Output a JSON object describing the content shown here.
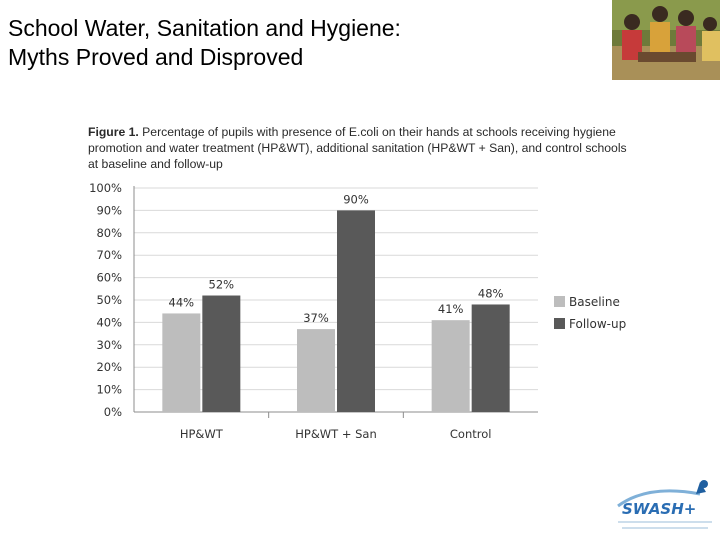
{
  "slide": {
    "title_line1": "School Water, Sanitation and Hygiene:",
    "title_line2": "Myths Proved and Disproved"
  },
  "figure": {
    "label": "Figure 1.",
    "caption": " Percentage of pupils with presence of E.coli on their hands at schools receiving hygiene promotion and water treatment (HP&WT), additional sanitation (HP&WT + San), and control schools at baseline and follow-up"
  },
  "logo": {
    "text": "SWASH+"
  },
  "colors": {
    "baseline": "#bdbdbd",
    "followup": "#595959",
    "axis": "#8c8c8c",
    "grid": "#d9d9d9"
  },
  "chart_data": {
    "type": "bar",
    "categories": [
      "HP&WT",
      "HP&WT + San",
      "Control"
    ],
    "series": [
      {
        "name": "Baseline",
        "values": [
          44,
          37,
          41
        ],
        "labels": [
          "44%",
          "37%",
          "41%"
        ]
      },
      {
        "name": "Follow-up",
        "values": [
          52,
          90,
          48
        ],
        "labels": [
          "52%",
          "90%",
          "48%"
        ]
      }
    ],
    "yticks": [
      "0%",
      "10%",
      "20%",
      "30%",
      "40%",
      "50%",
      "60%",
      "70%",
      "80%",
      "90%",
      "100%"
    ],
    "ylim": [
      0,
      100
    ],
    "grid": true,
    "legend_position": "right"
  }
}
